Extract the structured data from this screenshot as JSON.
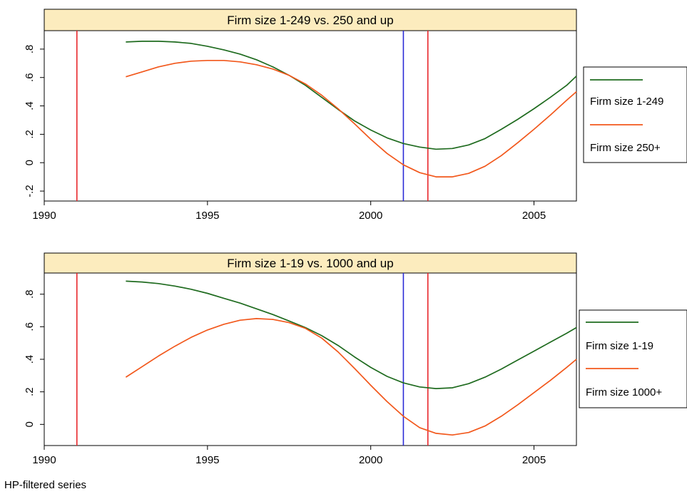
{
  "note": "HP-filtered series",
  "chart_data": [
    {
      "type": "line",
      "title": "Firm size 1-249 vs. 250 and up",
      "xlim": [
        1990,
        2006.3
      ],
      "ylim": [
        -0.27,
        0.93
      ],
      "xticks": [
        1990,
        1995,
        2000,
        2005
      ],
      "xtick_labels": [
        "1990",
        "1995",
        "2000",
        "2005"
      ],
      "yticks": [
        -0.2,
        0,
        0.2,
        0.4,
        0.6,
        0.8
      ],
      "ytick_labels": [
        "-.2",
        "0",
        ".2",
        ".4",
        ".6",
        ".8"
      ],
      "vlines": [
        {
          "x": 1991.0,
          "color": "#e8262b"
        },
        {
          "x": 2001.0,
          "color": "#2b2bd6"
        },
        {
          "x": 2001.75,
          "color": "#e8262b"
        }
      ],
      "series": [
        {
          "name": "Firm size 1-249",
          "color": "#1f6b1f",
          "x": [
            1992.5,
            1993,
            1993.5,
            1994,
            1994.5,
            1995,
            1995.5,
            1996,
            1996.5,
            1997,
            1997.5,
            1998,
            1998.5,
            1999,
            1999.5,
            2000,
            2000.5,
            2001,
            2001.5,
            2002,
            2002.5,
            2003,
            2003.5,
            2004,
            2004.5,
            2005,
            2005.5,
            2006,
            2006.3
          ],
          "y": [
            0.85,
            0.855,
            0.855,
            0.85,
            0.84,
            0.82,
            0.795,
            0.765,
            0.725,
            0.675,
            0.615,
            0.545,
            0.46,
            0.375,
            0.295,
            0.23,
            0.175,
            0.135,
            0.11,
            0.095,
            0.1,
            0.125,
            0.17,
            0.235,
            0.305,
            0.38,
            0.46,
            0.545,
            0.61
          ]
        },
        {
          "name": "Firm size 250+",
          "color": "#f2581c",
          "x": [
            1992.5,
            1993,
            1993.5,
            1994,
            1994.5,
            1995,
            1995.5,
            1996,
            1996.5,
            1997,
            1997.5,
            1998,
            1998.5,
            1999,
            1999.5,
            2000,
            2000.5,
            2001,
            2001.5,
            2002,
            2002.5,
            2003,
            2003.5,
            2004,
            2004.5,
            2005,
            2005.5,
            2006,
            2006.3
          ],
          "y": [
            0.605,
            0.64,
            0.675,
            0.7,
            0.715,
            0.72,
            0.72,
            0.71,
            0.69,
            0.66,
            0.615,
            0.555,
            0.475,
            0.38,
            0.275,
            0.165,
            0.065,
            -0.015,
            -0.07,
            -0.1,
            -0.1,
            -0.075,
            -0.025,
            0.05,
            0.14,
            0.235,
            0.335,
            0.44,
            0.5
          ]
        }
      ],
      "legend": {
        "position": "right"
      }
    },
    {
      "type": "line",
      "title": "Firm size 1-19 vs. 1000 and up",
      "xlim": [
        1990,
        2006.3
      ],
      "ylim": [
        -0.13,
        0.93
      ],
      "xticks": [
        1990,
        1995,
        2000,
        2005
      ],
      "xtick_labels": [
        "1990",
        "1995",
        "2000",
        "2005"
      ],
      "yticks": [
        0,
        0.2,
        0.4,
        0.6,
        0.8
      ],
      "ytick_labels": [
        "0",
        ".2",
        ".4",
        ".6",
        ".8"
      ],
      "vlines": [
        {
          "x": 1991.0,
          "color": "#e8262b"
        },
        {
          "x": 2001.0,
          "color": "#2b2bd6"
        },
        {
          "x": 2001.75,
          "color": "#e8262b"
        }
      ],
      "series": [
        {
          "name": "Firm size 1-19",
          "color": "#1f6b1f",
          "x": [
            1992.5,
            1993,
            1993.5,
            1994,
            1994.5,
            1995,
            1995.5,
            1996,
            1996.5,
            1997,
            1997.5,
            1998,
            1998.5,
            1999,
            1999.5,
            2000,
            2000.5,
            2001,
            2001.5,
            2002,
            2002.5,
            2003,
            2003.5,
            2004,
            2004.5,
            2005,
            2005.5,
            2006,
            2006.3
          ],
          "y": [
            0.88,
            0.875,
            0.865,
            0.85,
            0.83,
            0.805,
            0.775,
            0.745,
            0.71,
            0.675,
            0.635,
            0.595,
            0.545,
            0.485,
            0.415,
            0.35,
            0.295,
            0.255,
            0.23,
            0.22,
            0.225,
            0.25,
            0.29,
            0.34,
            0.395,
            0.45,
            0.505,
            0.56,
            0.595
          ]
        },
        {
          "name": "Firm size 1000+",
          "color": "#f2581c",
          "x": [
            1992.5,
            1993,
            1993.5,
            1994,
            1994.5,
            1995,
            1995.5,
            1996,
            1996.5,
            1997,
            1997.5,
            1998,
            1998.5,
            1999,
            1999.5,
            2000,
            2000.5,
            2001,
            2001.5,
            2002,
            2002.5,
            2003,
            2003.5,
            2004,
            2004.5,
            2005,
            2005.5,
            2006,
            2006.3
          ],
          "y": [
            0.29,
            0.355,
            0.42,
            0.48,
            0.535,
            0.58,
            0.615,
            0.64,
            0.65,
            0.645,
            0.625,
            0.59,
            0.53,
            0.445,
            0.345,
            0.24,
            0.14,
            0.05,
            -0.02,
            -0.055,
            -0.065,
            -0.05,
            -0.01,
            0.05,
            0.12,
            0.195,
            0.27,
            0.35,
            0.4
          ]
        }
      ],
      "legend": {
        "position": "right"
      }
    }
  ]
}
